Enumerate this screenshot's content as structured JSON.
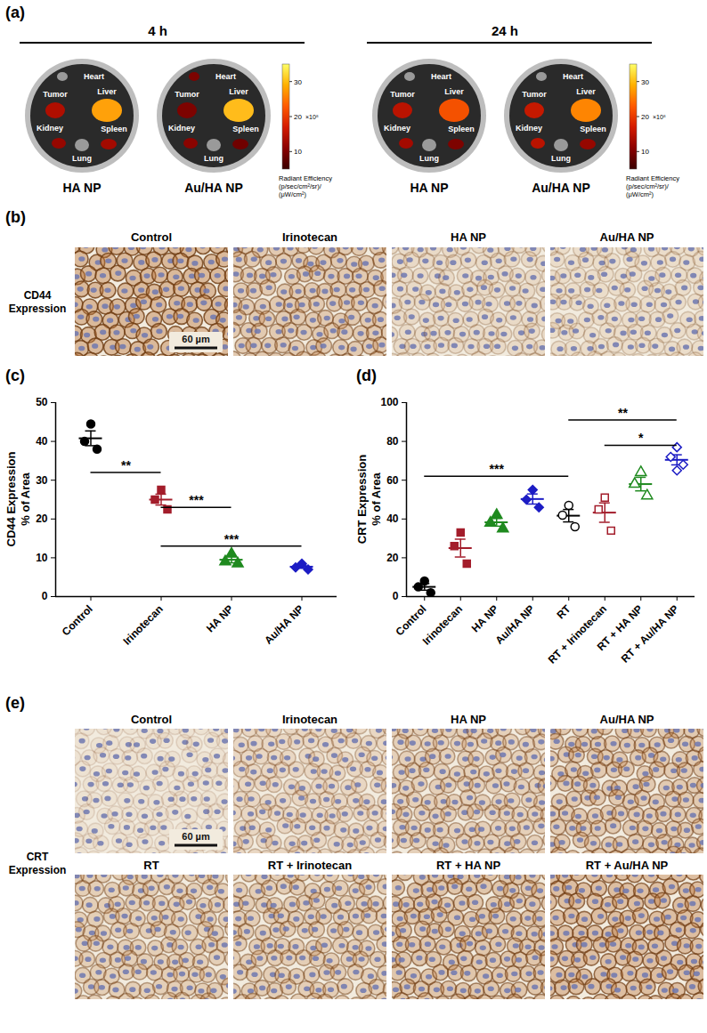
{
  "panels": {
    "a": {
      "letter": "(a)",
      "groups": [
        {
          "label": "4 h",
          "dishes": [
            {
              "label": "HA NP",
              "organs": [
                {
                  "name": "Heart",
                  "signal": 4
                },
                {
                  "name": "Tumor",
                  "signal": 14
                },
                {
                  "name": "Liver",
                  "signal": 28
                },
                {
                  "name": "Kidney",
                  "signal": 12
                },
                {
                  "name": "Spleen",
                  "signal": 13
                },
                {
                  "name": "Lung",
                  "signal": 3
                }
              ]
            },
            {
              "label": "Au/HA NP",
              "organs": [
                {
                  "name": "Heart",
                  "signal": 10
                },
                {
                  "name": "Tumor",
                  "signal": 10
                },
                {
                  "name": "Liver",
                  "signal": 30
                },
                {
                  "name": "Kidney",
                  "signal": 11
                },
                {
                  "name": "Spleen",
                  "signal": 9
                },
                {
                  "name": "Lung",
                  "signal": 3
                }
              ]
            }
          ]
        },
        {
          "label": "24 h",
          "dishes": [
            {
              "label": "HA NP",
              "organs": [
                {
                  "name": "Heart",
                  "signal": 3
                },
                {
                  "name": "Tumor",
                  "signal": 15
                },
                {
                  "name": "Liver",
                  "signal": 22
                },
                {
                  "name": "Kidney",
                  "signal": 13
                },
                {
                  "name": "Spleen",
                  "signal": 10
                },
                {
                  "name": "Lung",
                  "signal": 2
                }
              ]
            },
            {
              "label": "Au/HA NP",
              "organs": [
                {
                  "name": "Heart",
                  "signal": 3
                },
                {
                  "name": "Tumor",
                  "signal": 16
                },
                {
                  "name": "Liver",
                  "signal": 26
                },
                {
                  "name": "Kidney",
                  "signal": 15
                },
                {
                  "name": "Spleen",
                  "signal": 12
                },
                {
                  "name": "Lung",
                  "signal": 3
                }
              ]
            }
          ]
        }
      ],
      "colorbar": {
        "range": [
          5,
          35
        ],
        "ticks": [
          10,
          20,
          30
        ],
        "exponent": "×10⁸",
        "title": "Radiant Efficiency",
        "units": "(p/sec/cm²/sr)/(μW/cm²)"
      }
    },
    "b": {
      "letter": "(b)",
      "row_label": "CD44 Expression",
      "columns": [
        "Control",
        "Irinotecan",
        "HA NP",
        "Au/HA NP"
      ],
      "scale_bar": "60 µm"
    },
    "e": {
      "letter": "(e)",
      "row_label": "CRT Expression",
      "rows": [
        [
          "Control",
          "Irinotecan",
          "HA NP",
          "Au/HA NP"
        ],
        [
          "RT",
          "RT + Irinotecan",
          "RT + HA NP",
          "RT + Au/HA NP"
        ]
      ],
      "scale_bar": "60 µm"
    }
  },
  "chart_data": [
    {
      "letter": "(c)",
      "type": "scatter",
      "ylabel": [
        "CD44 Expression",
        "% of Area"
      ],
      "categories": [
        "Control",
        "Irinotecan",
        "HA NP",
        "Au/HA NP"
      ],
      "values": [
        [
          44.5,
          40,
          38
        ],
        [
          27.5,
          25,
          22.5
        ],
        [
          11,
          9,
          8.5
        ],
        [
          8.5,
          7.5,
          7
        ]
      ],
      "mean": [
        40.8,
        25,
        9.5,
        7.7
      ],
      "sem": [
        1.9,
        1.4,
        0.8,
        0.4
      ],
      "colors": [
        "#000000",
        "#a31d2b",
        "#1f8a1f",
        "#1c1cc4"
      ],
      "markers": [
        "circle",
        "square",
        "triangle",
        "diamond"
      ],
      "ylim": [
        0,
        50
      ],
      "yticks": [
        0,
        10,
        20,
        30,
        40,
        50
      ],
      "significance": [
        {
          "from": "Control",
          "to": "Irinotecan",
          "y": 32,
          "label": "**"
        },
        {
          "from": "Irinotecan",
          "to": "HA NP",
          "y": 23,
          "label": "***"
        },
        {
          "from": "Irinotecan",
          "to": "Au/HA NP",
          "y": 13,
          "label": "***"
        }
      ]
    },
    {
      "letter": "(d)",
      "type": "scatter",
      "ylabel": [
        "CRT Expression",
        "% of Area"
      ],
      "categories": [
        "Control",
        "Irinotecan",
        "HA NP",
        "Au/HA NP",
        "RT",
        "RT + Irinotecan",
        "RT + HA NP",
        "RT + Au/HA NP"
      ],
      "values": [
        [
          8,
          5,
          2
        ],
        [
          33,
          26,
          17
        ],
        [
          42,
          38,
          35
        ],
        [
          55,
          50,
          46
        ],
        [
          47,
          42,
          36
        ],
        [
          51,
          45,
          34
        ],
        [
          64,
          58,
          52
        ],
        [
          77,
          72,
          68,
          65
        ]
      ],
      "mean": [
        5,
        25,
        38.3,
        50.3,
        41.7,
        43.3,
        58,
        70.5
      ],
      "sem": [
        1.7,
        4.6,
        2,
        2.6,
        3.2,
        5,
        3.5,
        2.6
      ],
      "colors": [
        "#000000",
        "#a31d2b",
        "#1f8a1f",
        "#1c1cc4",
        "#000000",
        "#a31d2b",
        "#1f8a1f",
        "#1c1cc4"
      ],
      "markers": [
        "circle",
        "square",
        "triangle",
        "diamond",
        "circle_open",
        "square_open",
        "triangle_open",
        "diamond_open"
      ],
      "ylim": [
        0,
        100
      ],
      "yticks": [
        0,
        20,
        40,
        60,
        80,
        100
      ],
      "significance": [
        {
          "from": "Control",
          "to": "RT",
          "y": 62,
          "label": "***"
        },
        {
          "from": "RT + Irinotecan",
          "to": "RT + Au/HA NP",
          "y": 78,
          "label": "*"
        },
        {
          "from": "RT",
          "to": "RT + Au/HA NP",
          "y": 91,
          "label": "**"
        }
      ]
    }
  ]
}
